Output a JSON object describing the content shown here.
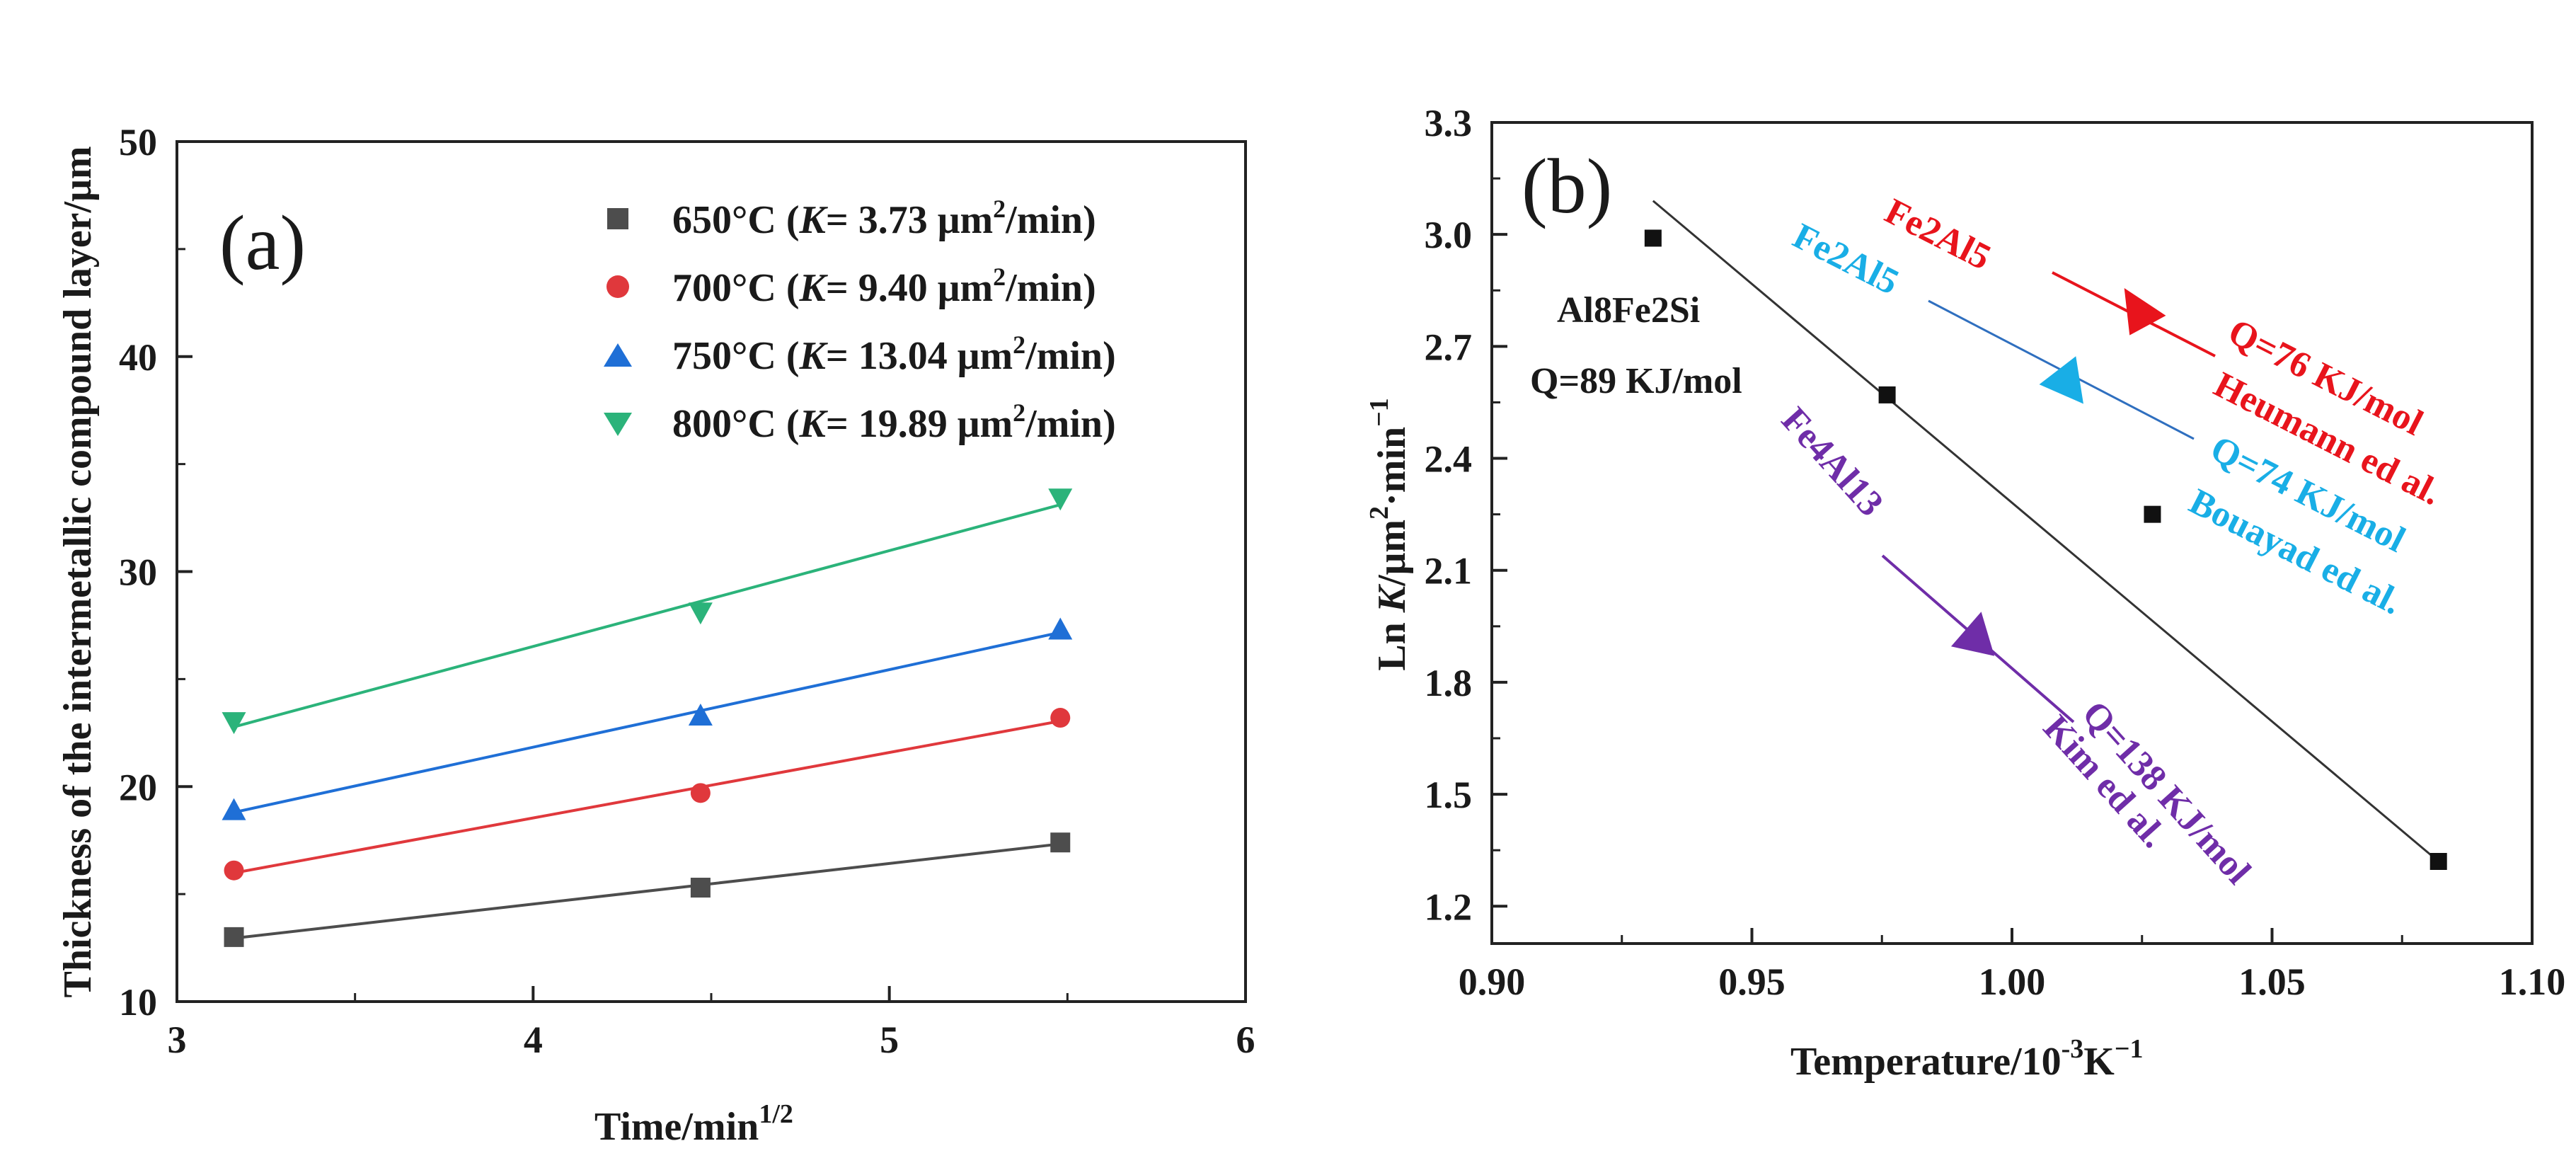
{
  "chart_data": [
    {
      "type": "scatter",
      "panel_label": "(a)",
      "xlabel": {
        "text": "Time/min",
        "sup": "1/2"
      },
      "ylabel": "Thickness of the intermetallic compound layer/μm",
      "xlim": [
        3,
        6
      ],
      "ylim": [
        10,
        50
      ],
      "xticks": [
        "3",
        "4",
        "5",
        "6"
      ],
      "yticks": [
        "10",
        "20",
        "30",
        "40",
        "50"
      ],
      "legend_position": "top-right",
      "fit_lines": true,
      "series": [
        {
          "name": "650°C",
          "legend_prefix": "650°C (",
          "legend_k": "K",
          "legend_value": "= 3.73 μm",
          "legend_sup": "2",
          "legend_suffix": "/min)",
          "marker": "square",
          "color": "#4d4d4d",
          "x": [
            3.16,
            4.47,
            5.48
          ],
          "y": [
            13.0,
            15.3,
            17.4
          ]
        },
        {
          "name": "700°C",
          "legend_prefix": "700°C (",
          "legend_k": "K",
          "legend_value": "= 9.40 μm",
          "legend_sup": "2",
          "legend_suffix": "/min)",
          "marker": "circle",
          "color": "#e0383c",
          "x": [
            3.16,
            4.47,
            5.48
          ],
          "y": [
            16.1,
            19.7,
            23.2
          ]
        },
        {
          "name": "750°C",
          "legend_prefix": "750°C (",
          "legend_k": "K",
          "legend_value": "= 13.04 μm",
          "legend_sup": "2",
          "legend_suffix": "/min)",
          "marker": "triangle-up",
          "color": "#1f6fd6",
          "x": [
            3.16,
            4.47,
            5.48
          ],
          "y": [
            18.9,
            23.3,
            27.3
          ]
        },
        {
          "name": "800°C",
          "legend_prefix": "800°C (",
          "legend_k": "K",
          "legend_value": "= 19.89 μm",
          "legend_sup": "2",
          "legend_suffix": "/min)",
          "marker": "triangle-down",
          "color": "#2bb37a",
          "x": [
            3.16,
            4.47,
            5.48
          ],
          "y": [
            23.0,
            28.1,
            33.4
          ]
        }
      ]
    },
    {
      "type": "scatter",
      "panel_label": "(b)",
      "xlabel": {
        "text": "Temperature/10",
        "sup1": "-3",
        "mid": "K",
        "sup2": "−1"
      },
      "ylabel": {
        "part1": "Ln ",
        "k": "K",
        "part2": "/μm",
        "sup1": "2",
        "part3": "·min",
        "sup2": "−1"
      },
      "xlim": [
        0.9,
        1.1
      ],
      "ylim": [
        1.1,
        3.3
      ],
      "xticks": [
        "0.90",
        "0.95",
        "1.00",
        "1.05",
        "1.10"
      ],
      "yticks": [
        "1.2",
        "1.5",
        "1.8",
        "2.1",
        "2.4",
        "2.7",
        "3.0",
        "3.3"
      ],
      "points": {
        "x": [
          0.931,
          0.976,
          1.027,
          1.082
        ],
        "y": [
          2.99,
          2.57,
          2.25,
          1.32
        ],
        "marker": "square",
        "color": "#111111"
      },
      "fit_line": {
        "x": [
          0.931,
          1.082
        ],
        "y": [
          3.09,
          1.32
        ],
        "color": "#333333"
      },
      "annotations": [
        {
          "name": "al8fe2si",
          "lines": [
            "Al8Fe2Si",
            "Q=89 KJ/mol"
          ],
          "color": "#111111"
        },
        {
          "name": "fe2al5-heumann",
          "phase": "Fe2Al5",
          "lines": [
            "Q=76 KJ/mol",
            "Heumann ed al."
          ],
          "color": "#e8141c"
        },
        {
          "name": "fe2al5-bouayad",
          "phase": "Fe2Al5",
          "lines": [
            "Q=74 KJ/mol",
            "Bouayad ed al."
          ],
          "color": "#19aee6"
        },
        {
          "name": "fe4al13-kim",
          "phase": "Fe4Al13",
          "lines": [
            "Q=138 KJ/mol",
            "Kim ed al."
          ],
          "color": "#6f2da8"
        }
      ]
    }
  ]
}
